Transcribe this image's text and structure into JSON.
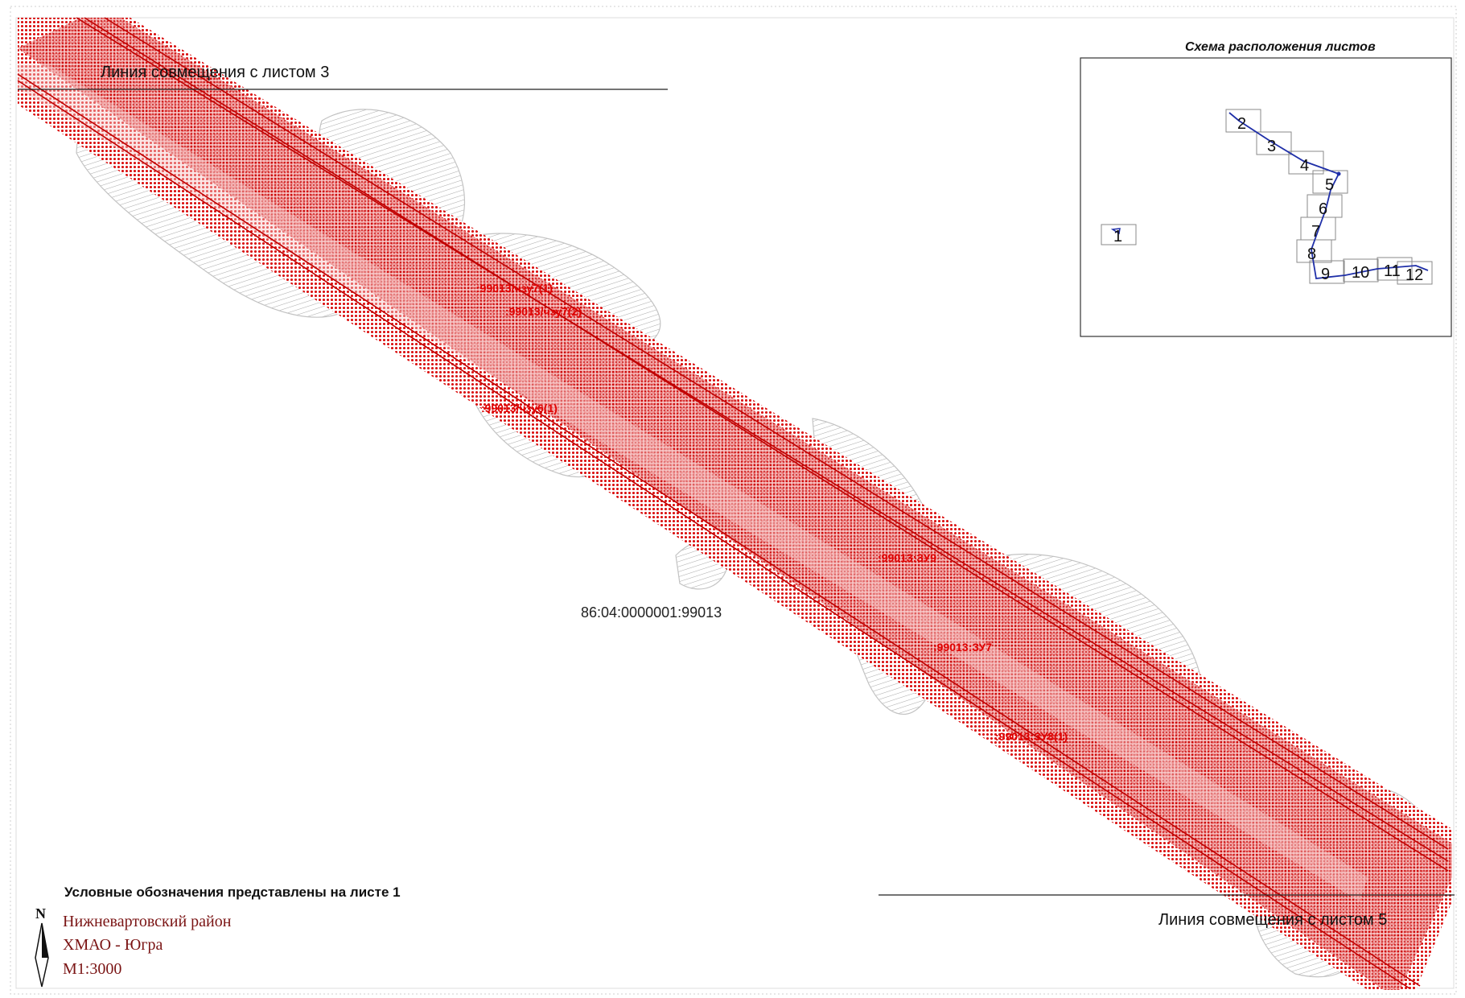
{
  "map": {
    "overlap_line_top": "Линия совмещения с листом 3",
    "overlap_line_bottom": "Линия совмещения с листом 5",
    "cadastral_number": "86:04:0000001:99013",
    "parcel_labels": [
      ":99013/чзу7(1)",
      ":99013/чзу7(2)",
      ":99013/чзу6(1)",
      ":99013:ЗУ9",
      ":99013:ЗУ7",
      ":99013:ЗУ8(1)"
    ],
    "band_color": "#d80000",
    "label_color": "#e00000"
  },
  "sheet_scheme": {
    "title": "Схема расположения листов",
    "sheet_numbers": [
      "1",
      "2",
      "3",
      "4",
      "5",
      "6",
      "7",
      "8",
      "9",
      "10",
      "11",
      "12"
    ],
    "route_color": "#1f2fa8"
  },
  "legend": {
    "note": "Условные обозначения представлены на листе 1",
    "north_letter": "N",
    "district": "Нижневартовский район",
    "region": "ХМАО - Югра",
    "scale": "М1:3000",
    "text_color": "#7a1414"
  }
}
